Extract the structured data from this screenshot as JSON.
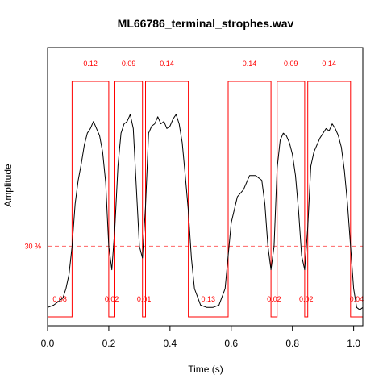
{
  "chart_data": {
    "type": "line",
    "title": "ML66786_terminal_strophes.wav",
    "xlabel": "Time (s)",
    "ylabel": "Amplitude",
    "xlim": [
      0,
      1.03
    ],
    "ylim": [
      0,
      1
    ],
    "x_ticks": [
      {
        "value": 0.0,
        "label": "0.0"
      },
      {
        "value": 0.2,
        "label": "0.2"
      },
      {
        "value": 0.4,
        "label": "0.4"
      },
      {
        "value": 0.6,
        "label": "0.6"
      },
      {
        "value": 0.8,
        "label": "0.8"
      },
      {
        "value": 1.0,
        "label": "1.0"
      }
    ],
    "threshold": {
      "value": 0.3,
      "label": "30 %"
    },
    "series": [
      {
        "type": "line",
        "x": [
          0.0,
          0.02,
          0.04,
          0.05,
          0.06,
          0.07,
          0.08,
          0.09,
          0.1,
          0.11,
          0.12,
          0.13,
          0.14,
          0.15,
          0.16,
          0.17,
          0.18,
          0.19,
          0.2,
          0.21,
          0.22,
          0.23,
          0.24,
          0.25,
          0.26,
          0.27,
          0.28,
          0.29,
          0.3,
          0.31,
          0.32,
          0.33,
          0.34,
          0.35,
          0.36,
          0.37,
          0.38,
          0.39,
          0.4,
          0.41,
          0.42,
          0.43,
          0.44,
          0.45,
          0.46,
          0.47,
          0.48,
          0.5,
          0.52,
          0.54,
          0.56,
          0.58,
          0.6,
          0.62,
          0.64,
          0.66,
          0.68,
          0.7,
          0.71,
          0.72,
          0.73,
          0.74,
          0.75,
          0.76,
          0.77,
          0.78,
          0.79,
          0.8,
          0.81,
          0.82,
          0.83,
          0.84,
          0.85,
          0.86,
          0.87,
          0.88,
          0.89,
          0.9,
          0.91,
          0.92,
          0.93,
          0.94,
          0.95,
          0.96,
          0.97,
          0.98,
          0.99,
          1.0,
          1.01,
          1.02,
          1.03
        ],
        "y": [
          0.04,
          0.05,
          0.07,
          0.08,
          0.12,
          0.18,
          0.3,
          0.48,
          0.58,
          0.65,
          0.73,
          0.78,
          0.8,
          0.83,
          0.8,
          0.77,
          0.7,
          0.57,
          0.3,
          0.2,
          0.38,
          0.64,
          0.78,
          0.82,
          0.83,
          0.86,
          0.8,
          0.55,
          0.3,
          0.25,
          0.47,
          0.78,
          0.81,
          0.82,
          0.85,
          0.82,
          0.83,
          0.8,
          0.81,
          0.84,
          0.86,
          0.82,
          0.74,
          0.6,
          0.45,
          0.25,
          0.12,
          0.05,
          0.04,
          0.04,
          0.05,
          0.12,
          0.4,
          0.51,
          0.54,
          0.6,
          0.6,
          0.58,
          0.48,
          0.3,
          0.2,
          0.3,
          0.63,
          0.75,
          0.78,
          0.77,
          0.74,
          0.69,
          0.6,
          0.45,
          0.26,
          0.2,
          0.38,
          0.64,
          0.7,
          0.73,
          0.76,
          0.78,
          0.8,
          0.79,
          0.82,
          0.8,
          0.77,
          0.72,
          0.62,
          0.48,
          0.3,
          0.12,
          0.04,
          0.03,
          0.04
        ]
      }
    ],
    "segments": [
      {
        "start": 0.0,
        "end": 0.08,
        "label": "0.08",
        "state": "low"
      },
      {
        "start": 0.08,
        "end": 0.2,
        "label": "0.12",
        "state": "high"
      },
      {
        "start": 0.2,
        "end": 0.22,
        "label": "0.02",
        "state": "low"
      },
      {
        "start": 0.22,
        "end": 0.31,
        "label": "0.09",
        "state": "high"
      },
      {
        "start": 0.31,
        "end": 0.32,
        "label": "0.01",
        "state": "low"
      },
      {
        "start": 0.32,
        "end": 0.46,
        "label": "0.14",
        "state": "high"
      },
      {
        "start": 0.46,
        "end": 0.59,
        "label": "0.13",
        "state": "low"
      },
      {
        "start": 0.59,
        "end": 0.73,
        "label": "0.14",
        "state": "high"
      },
      {
        "start": 0.73,
        "end": 0.75,
        "label": "0.02",
        "state": "low"
      },
      {
        "start": 0.75,
        "end": 0.84,
        "label": "0.09",
        "state": "high"
      },
      {
        "start": 0.84,
        "end": 0.85,
        "label": "0.02",
        "state": "low"
      },
      {
        "start": 0.85,
        "end": 0.99,
        "label": "0.14",
        "state": "high"
      },
      {
        "start": 0.99,
        "end": 1.03,
        "label": "0.04",
        "state": "low"
      }
    ],
    "segment_high_level": 1.0,
    "segment_low_level": 0.0,
    "grid": false,
    "colors": {
      "signal": "#000000",
      "segments": "#ff0000",
      "threshold": "#ff6666"
    }
  }
}
